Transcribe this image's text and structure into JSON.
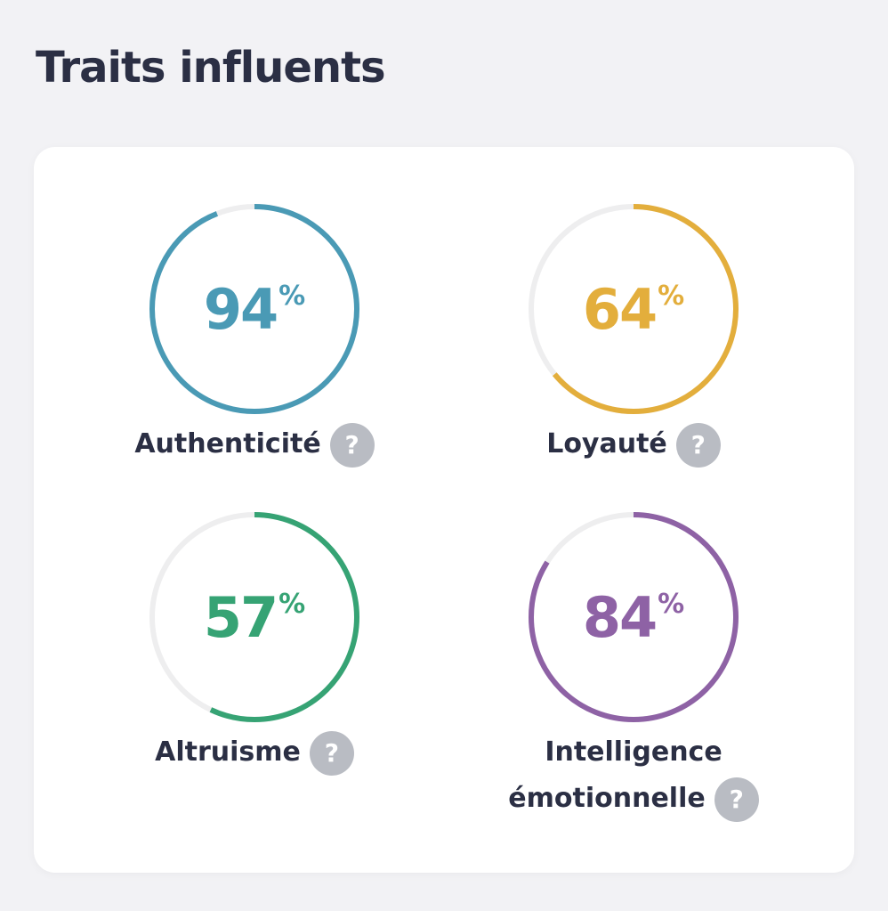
{
  "title": "Traits influents",
  "unit": "%",
  "help_icon": "?",
  "traits": [
    {
      "name": "Authenticité",
      "value": 94,
      "color": "#4a9ab5"
    },
    {
      "name": "Loyauté",
      "value": 64,
      "color": "#e3ae3c"
    },
    {
      "name": "Altruisme",
      "value": 57,
      "color": "#36a374"
    },
    {
      "name": "Intelligence émotionnelle",
      "value": 84,
      "color": "#8e62a5"
    }
  ]
}
